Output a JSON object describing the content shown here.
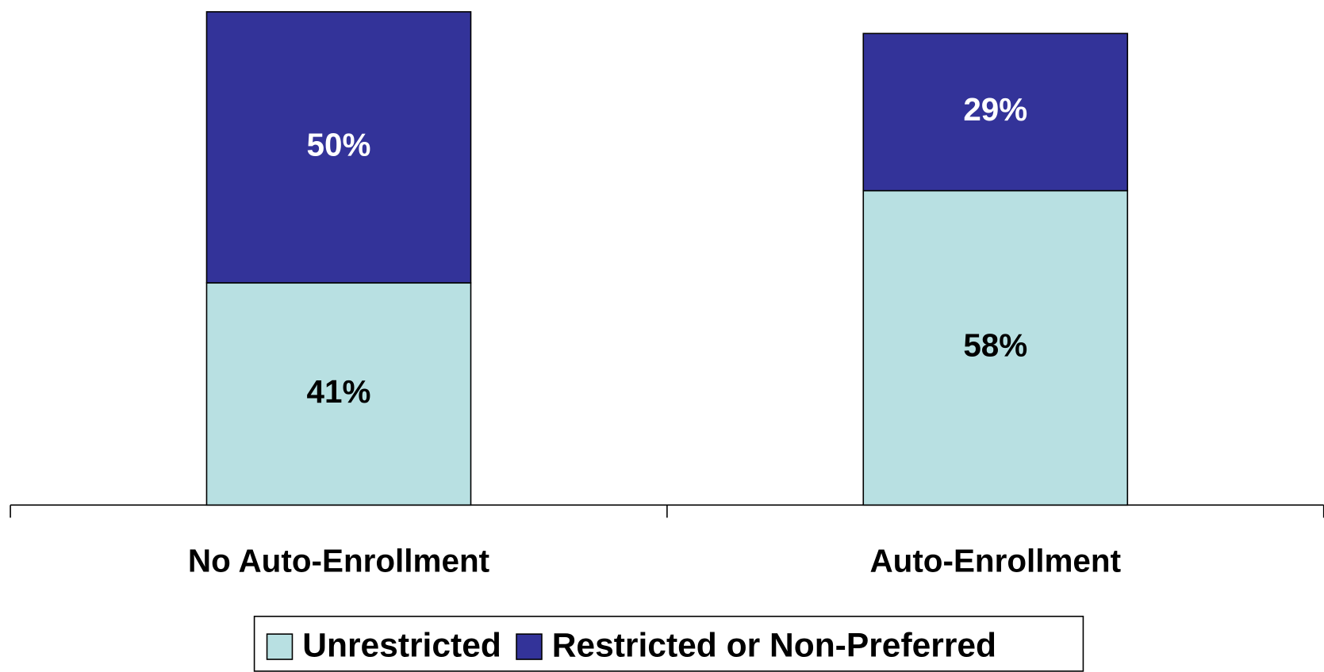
{
  "chart_data": {
    "type": "stacked-bar",
    "categories": [
      "No Auto-Enrollment",
      "Auto-Enrollment"
    ],
    "series": [
      {
        "name": "Unrestricted",
        "color": "#b8e0e2",
        "label_color": "#000000",
        "values": [
          41,
          58
        ],
        "value_labels": [
          "41%",
          "58%"
        ]
      },
      {
        "name": "Restricted or Non-Preferred",
        "color": "#333399",
        "label_color": "#ffffff",
        "values": [
          50,
          29
        ],
        "value_labels": [
          "50%",
          "29%"
        ]
      }
    ],
    "legend": "bottom"
  }
}
